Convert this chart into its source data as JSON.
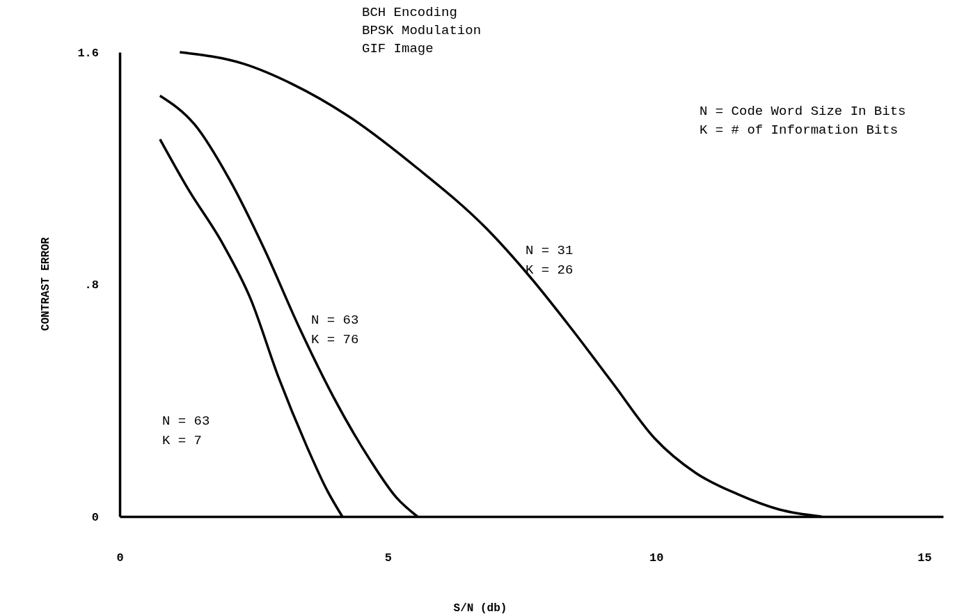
{
  "chart_data": {
    "type": "line",
    "title": "BCH Encoding\nBPSK Modulation\nGIF Image",
    "xlabel": "S/N (db)",
    "ylabel": "CONTRAST ERROR",
    "xlim": [
      0,
      15.35
    ],
    "ylim": [
      0,
      1.6
    ],
    "xticks": [
      0,
      5,
      10,
      15
    ],
    "yticks": [
      0,
      {
        "value": 0.8,
        "label": ".8"
      },
      1.6
    ],
    "grid": false,
    "marker": "none",
    "line_style": "solid",
    "series": [
      {
        "color": "#000000",
        "x": [
          1.12,
          2.31,
          3.22,
          4.26,
          5.55,
          6.85,
          7.63,
          8.41,
          9.19,
          9.97,
          10.74,
          11.52,
          12.3,
          13.08
        ],
        "values": [
          1.6,
          1.56,
          1.49,
          1.38,
          1.2,
          0.99,
          0.83,
          0.65,
          0.46,
          0.27,
          0.15,
          0.077,
          0.024,
          0
        ]
      },
      {
        "color": "#000000",
        "x": [
          0.75,
          1.4,
          2.05,
          2.7,
          3.35,
          3.99,
          4.65,
          5.16,
          5.55
        ],
        "values": [
          1.45,
          1.35,
          1.16,
          0.92,
          0.65,
          0.41,
          0.2,
          0.065,
          0
        ]
      },
      {
        "color": "#000000",
        "x": [
          0.75,
          1.27,
          1.92,
          2.44,
          2.96,
          3.48,
          3.87,
          4.15
        ],
        "values": [
          1.3,
          1.13,
          0.94,
          0.75,
          0.48,
          0.245,
          0.089,
          0
        ]
      }
    ],
    "annotations": [
      "N = 31\nK = 26",
      "N = 63\nK = 76",
      "N = 63\nK = 7",
      "N = Code Word Size In Bits\nK = # of Information Bits"
    ]
  }
}
